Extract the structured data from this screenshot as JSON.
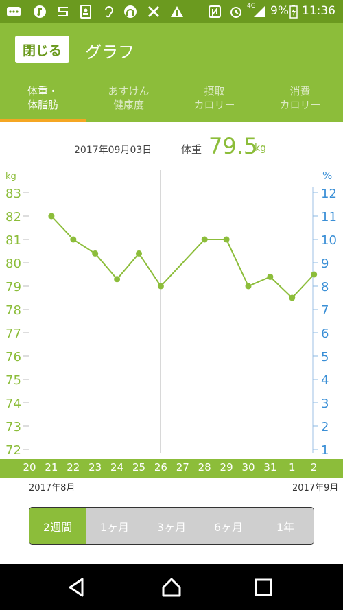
{
  "status_bar": {
    "battery": "9%",
    "network": "4G",
    "time": "11:36",
    "icons": [
      "more-icon",
      "music-note-icon",
      "s-app-icon",
      "contacts-icon",
      "hearing-icon",
      "headset-icon",
      "tools-icon",
      "warning-icon",
      "nfc-icon",
      "alarm-icon",
      "signal-icon",
      "battery-charging-icon"
    ]
  },
  "header": {
    "close_label": "閉じる",
    "title": "グラフ"
  },
  "tabs": [
    {
      "line1": "体重・",
      "line2": "体脂肪",
      "active": true
    },
    {
      "line1": "あすけん",
      "line2": "健康度",
      "active": false
    },
    {
      "line1": "摂取",
      "line2": "カロリー",
      "active": false
    },
    {
      "line1": "消費",
      "line2": "カロリー",
      "active": false
    }
  ],
  "info": {
    "date": "2017年09月03日",
    "label": "体重",
    "value": "79.5",
    "unit": "kg"
  },
  "chart_data": {
    "type": "line",
    "x": [
      "20",
      "21",
      "22",
      "23",
      "24",
      "25",
      "26",
      "27",
      "28",
      "29",
      "30",
      "31",
      "1",
      "2"
    ],
    "series": [
      {
        "values": [
          null,
          82.0,
          81.0,
          80.4,
          79.3,
          80.4,
          79.0,
          null,
          81.0,
          81.0,
          79.0,
          79.4,
          78.5,
          79.5
        ]
      }
    ],
    "ylabel_left": "kg",
    "ylabel_right": "%",
    "yticks_left": [
      83,
      82,
      81,
      80,
      79,
      78,
      77,
      76,
      75,
      74,
      73,
      72
    ],
    "yticks_right": [
      12,
      11,
      10,
      9,
      8,
      7,
      6,
      5,
      4,
      3,
      2,
      1
    ],
    "ylim_left": [
      72,
      83
    ],
    "ylim_right": [
      1,
      12
    ],
    "colors": {
      "line": "#8cbd3a",
      "right_axis": "#3a8fd6",
      "left_axis": "#8cbd3a"
    }
  },
  "month_labels": {
    "left": "2017年8月",
    "right": "2017年9月"
  },
  "range_buttons": [
    {
      "label": "2週間",
      "active": true
    },
    {
      "label": "1ヶ月",
      "active": false
    },
    {
      "label": "3ヶ月",
      "active": false
    },
    {
      "label": "6ヶ月",
      "active": false
    },
    {
      "label": "1年",
      "active": false
    }
  ],
  "nav": {
    "icons": [
      "back-icon",
      "home-icon",
      "recents-icon"
    ]
  }
}
